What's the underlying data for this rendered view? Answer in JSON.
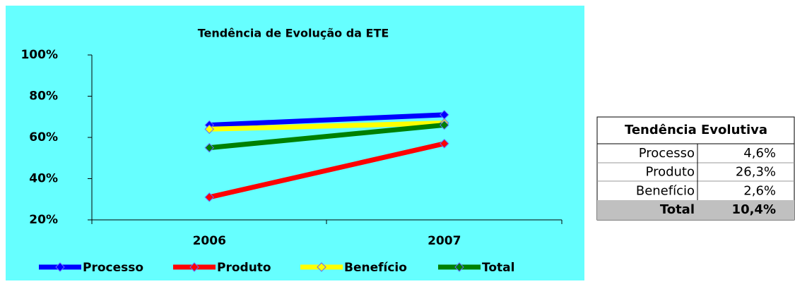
{
  "chart_data": {
    "type": "line",
    "title": "Tendência de Evolução da ETE",
    "categories": [
      "2006",
      "2007"
    ],
    "series": [
      {
        "name": "Processo",
        "color": "#0000ff",
        "values": [
          66,
          71
        ]
      },
      {
        "name": "Produto",
        "color": "#ff0000",
        "values": [
          31,
          57
        ]
      },
      {
        "name": "Benefício",
        "color": "#ffff00",
        "values": [
          64,
          67
        ]
      },
      {
        "name": "Total",
        "color": "#008000",
        "values": [
          55,
          66
        ]
      }
    ],
    "ylim": [
      20,
      100
    ],
    "yticks": [
      {
        "value": 20,
        "label": "20%"
      },
      {
        "value": 40,
        "label": "40%"
      },
      {
        "value": 60,
        "label": "60%"
      },
      {
        "value": 80,
        "label": "80%"
      },
      {
        "value": 100,
        "label": "100%"
      }
    ],
    "legend": "bottom"
  },
  "table": {
    "header": "Tendência Evolutiva",
    "rows": [
      [
        "Processo",
        "4,6%"
      ],
      [
        "Produto",
        "26,3%"
      ],
      [
        "Benefício",
        "2,6%"
      ]
    ],
    "total": [
      "Total",
      "10,4%"
    ]
  }
}
